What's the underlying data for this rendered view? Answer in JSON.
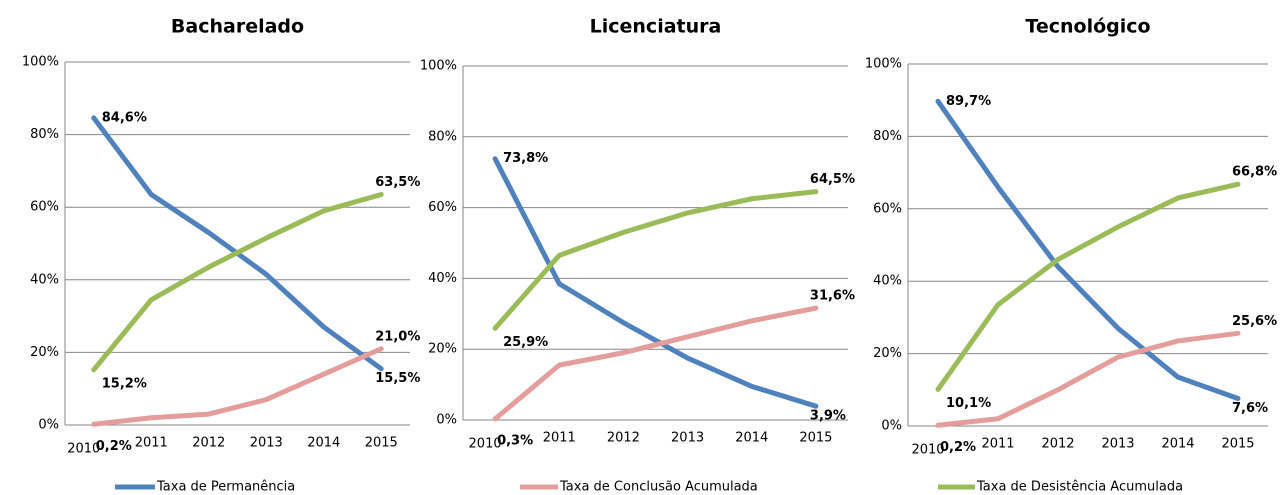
{
  "legend": [
    {
      "name": "Taxa de Permanência",
      "color": "#4f81bd"
    },
    {
      "name": "Taxa de Conclusão Acumulada",
      "color": "#e39d9b"
    },
    {
      "name": "Taxa de Desistência Acumulada",
      "color": "#9bbb59"
    }
  ],
  "chart_data": [
    {
      "type": "line",
      "title": "Bacharelado",
      "categories": [
        "2010",
        "2011",
        "2012",
        "2013",
        "2014",
        "2015"
      ],
      "ylim": [
        0,
        100
      ],
      "yticks": [
        {
          "value": 0,
          "label": "0%"
        },
        {
          "value": 20,
          "label": "20%"
        },
        {
          "value": 40,
          "label": "40%"
        },
        {
          "value": 60,
          "label": "60%"
        },
        {
          "value": 80,
          "label": "80%"
        },
        {
          "value": 100,
          "label": "100%"
        }
      ],
      "grid": true,
      "series": [
        {
          "values": [
            84.6,
            63.5,
            53,
            41.5,
            27,
            15.5
          ],
          "value_labels": [
            "84,6%",
            null,
            null,
            null,
            null,
            "15,5%"
          ]
        },
        {
          "values": [
            0.2,
            2,
            3,
            7,
            14,
            21.0
          ],
          "value_labels": [
            "0,2%",
            null,
            null,
            null,
            null,
            "21,0%"
          ]
        },
        {
          "values": [
            15.2,
            34.5,
            43.5,
            51.5,
            59,
            63.5
          ],
          "value_labels": [
            "15,2%",
            null,
            null,
            null,
            null,
            "63,5%"
          ]
        }
      ]
    },
    {
      "type": "line",
      "title": "Licenciatura",
      "categories": [
        "2010",
        "2011",
        "2012",
        "2013",
        "2014",
        "2015"
      ],
      "ylim": [
        0,
        100
      ],
      "yticks": [
        {
          "value": 0,
          "label": "0%"
        },
        {
          "value": 20,
          "label": "20%"
        },
        {
          "value": 40,
          "label": "40%"
        },
        {
          "value": 60,
          "label": "60%"
        },
        {
          "value": 80,
          "label": "80%"
        },
        {
          "value": 100,
          "label": "100%"
        }
      ],
      "grid": true,
      "series": [
        {
          "values": [
            73.8,
            38.5,
            27.5,
            17.5,
            9.5,
            3.9
          ],
          "value_labels": [
            "73,8%",
            null,
            null,
            null,
            null,
            "3,9%"
          ]
        },
        {
          "values": [
            0.3,
            15.5,
            19,
            23.5,
            28,
            31.6
          ],
          "value_labels": [
            "0,3%",
            null,
            null,
            null,
            null,
            "31,6%"
          ]
        },
        {
          "values": [
            25.9,
            46.5,
            53,
            58.5,
            62.5,
            64.5
          ],
          "value_labels": [
            "25,9%",
            null,
            null,
            null,
            null,
            "64,5%"
          ]
        }
      ]
    },
    {
      "type": "line",
      "title": "Tecnológico",
      "categories": [
        "2010",
        "2011",
        "2012",
        "2013",
        "2014",
        "2015"
      ],
      "ylim": [
        0,
        100
      ],
      "yticks": [
        {
          "value": 0,
          "label": "0%"
        },
        {
          "value": 20,
          "label": "20%"
        },
        {
          "value": 40,
          "label": "40%"
        },
        {
          "value": 60,
          "label": "60%"
        },
        {
          "value": 80,
          "label": "80%"
        },
        {
          "value": 100,
          "label": "100%"
        }
      ],
      "grid": true,
      "series": [
        {
          "values": [
            89.7,
            66,
            44,
            27,
            13.5,
            7.6
          ],
          "value_labels": [
            "89,7%",
            null,
            null,
            null,
            null,
            "7,6%"
          ]
        },
        {
          "values": [
            0.2,
            2,
            10,
            19,
            23.5,
            25.6
          ],
          "value_labels": [
            "0,2%",
            null,
            null,
            null,
            null,
            "25,6%"
          ]
        },
        {
          "values": [
            10.1,
            33.5,
            46,
            55,
            63,
            66.8
          ],
          "value_labels": [
            "10,1%",
            null,
            null,
            null,
            null,
            "66,8%"
          ]
        }
      ]
    }
  ]
}
